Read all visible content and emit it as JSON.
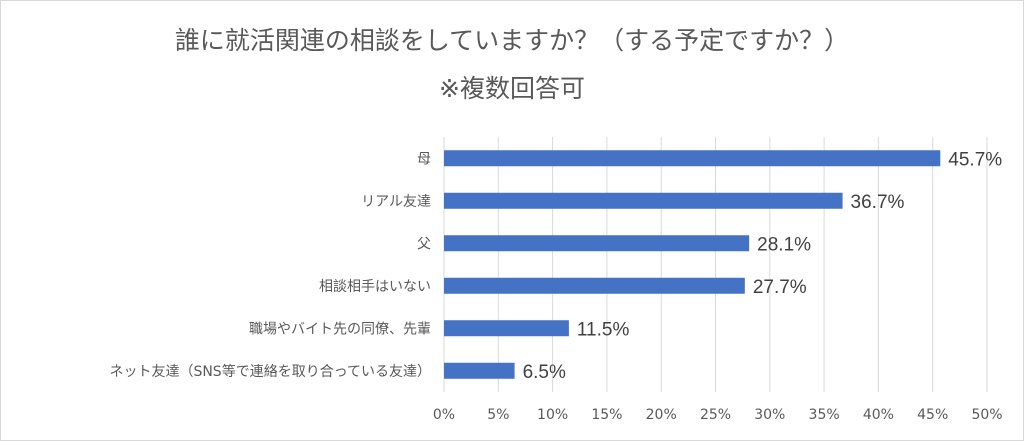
{
  "chart_data": {
    "type": "bar",
    "orientation": "horizontal",
    "title": "誰に就活関連の相談をしていますか？（する予定ですか？）",
    "subtitle": "※複数回答可",
    "categories": [
      "母",
      "リアル友達",
      "父",
      "相談相手はいない",
      "職場やバイト先の同僚、先輩",
      "ネット友達（SNS等で連絡を取り合っている友達）"
    ],
    "values": [
      45.7,
      36.7,
      28.1,
      27.7,
      11.5,
      6.5
    ],
    "data_labels": [
      "45.7%",
      "36.7%",
      "28.1%",
      "27.7%",
      "11.5%",
      "6.5%"
    ],
    "xlim": [
      0,
      50
    ],
    "x_ticks": [
      "0%",
      "5%",
      "10%",
      "15%",
      "20%",
      "25%",
      "30%",
      "35%",
      "40%",
      "45%",
      "50%"
    ],
    "grid": true,
    "bar_color": "#4472c4"
  }
}
